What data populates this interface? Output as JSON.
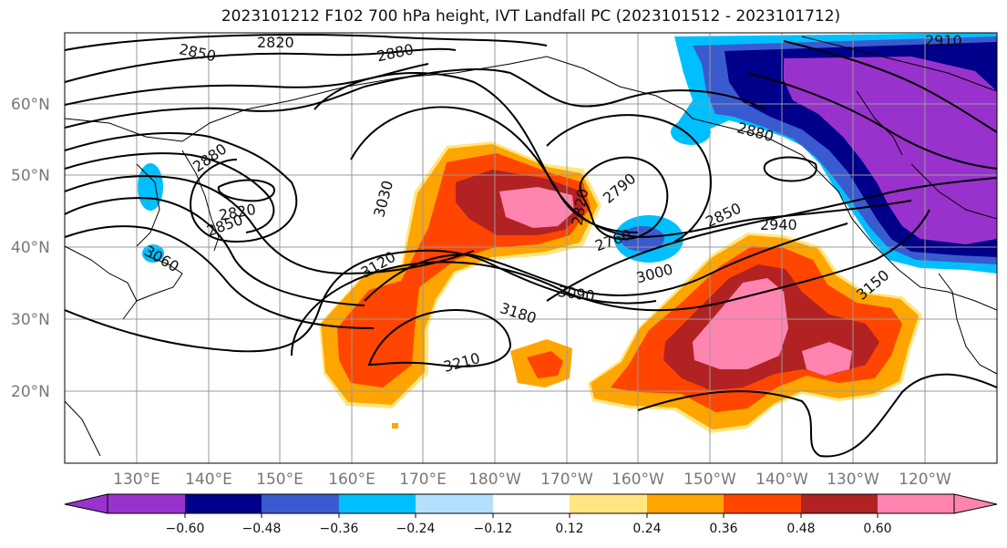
{
  "title": "2023101212 F102 700 hPa height, IVT Landfall PC (2023101512 - 2023101712)",
  "map": {
    "lat_labels": [
      "60°N",
      "50°N",
      "40°N",
      "30°N",
      "20°N"
    ],
    "lon_labels": [
      "130°E",
      "140°E",
      "150°E",
      "160°E",
      "170°E",
      "180°W",
      "170°W",
      "160°W",
      "150°W",
      "140°W",
      "130°W",
      "120°W"
    ],
    "contour_labels": [
      "2820",
      "2850",
      "2880",
      "2910",
      "2880",
      "2880",
      "2820",
      "2850",
      "3060",
      "3030",
      "3120",
      "2820",
      "2790",
      "2760",
      "3000",
      "2850",
      "2940",
      "3090",
      "3180",
      "3210",
      "3150"
    ],
    "colors": {
      "neg_060": "#9932cc",
      "neg_048": "#00008b",
      "neg_036": "#3a5bcf",
      "neg_024": "#00bfff",
      "neg_012": "#b3e0ff",
      "neutral": "#ffffff",
      "pos_012": "#ffe680",
      "pos_024": "#ffa500",
      "pos_036": "#ff4500",
      "pos_048": "#b22222",
      "pos_060": "#ff85b0"
    }
  },
  "colorbar": {
    "ticks": [
      "−0.60",
      "−0.48",
      "−0.36",
      "−0.24",
      "−0.12",
      "0.12",
      "0.24",
      "0.36",
      "0.48",
      "0.60"
    ],
    "bins": [
      "#9932cc",
      "#00008b",
      "#3a5bcf",
      "#00bfff",
      "#b3e0ff",
      "#ffffff",
      "#ffe680",
      "#ffa500",
      "#ff4500",
      "#b22222",
      "#ff85b0"
    ]
  }
}
